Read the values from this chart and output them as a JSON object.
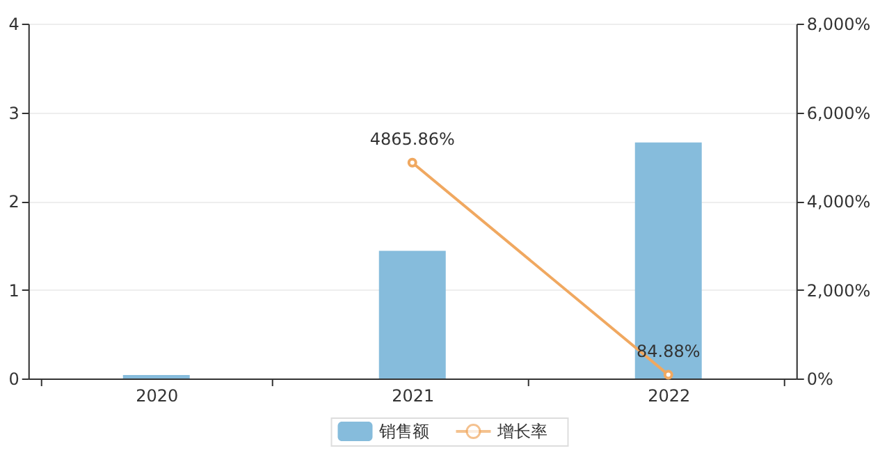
{
  "chart_data": {
    "type": "bar",
    "categories": [
      "2020",
      "2021",
      "2022"
    ],
    "series": [
      {
        "name": "销售额",
        "color": "#86bcdc",
        "values": [
          0.04,
          1.44,
          2.66
        ]
      },
      {
        "name": "增长率",
        "type": "line",
        "axis": "y2",
        "color": "#f0a860",
        "values": [
          null,
          4865.86,
          84.88
        ],
        "value_labels": [
          null,
          "4865.86%",
          "84.88%"
        ],
        "marker": "circle"
      }
    ],
    "ylim": [
      0,
      4
    ],
    "yticks": [
      0,
      1,
      2,
      3,
      4
    ],
    "y2lim": [
      0,
      8000
    ],
    "y2ticks": [
      {
        "value": 0,
        "label": "0%"
      },
      {
        "value": 2000,
        "label": "2,000%"
      },
      {
        "value": 4000,
        "label": "4,000%"
      },
      {
        "value": 6000,
        "label": "6,000%"
      },
      {
        "value": 8000,
        "label": "8,000%"
      }
    ],
    "grid": "y",
    "legend": "bottom"
  }
}
